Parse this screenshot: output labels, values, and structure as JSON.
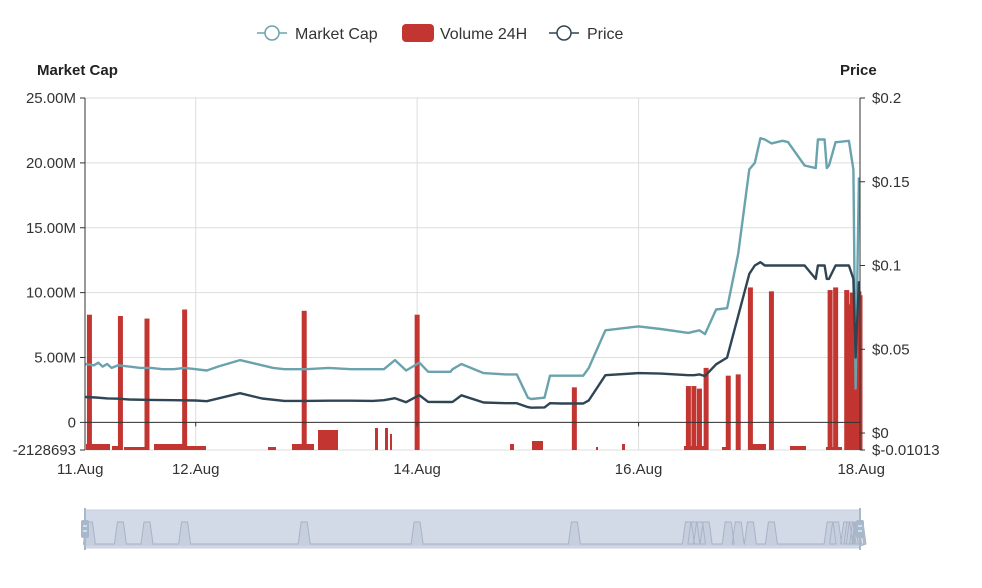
{
  "chart_data": {
    "type": "line",
    "legend": {
      "placement": "top-center",
      "items": [
        {
          "name": "Market Cap",
          "symbol": "line-circle",
          "color": "#6aa3ad"
        },
        {
          "name": "Volume 24H",
          "symbol": "rect",
          "color": "#c23531"
        },
        {
          "name": "Price",
          "symbol": "line-circle",
          "color": "#2f4554"
        }
      ]
    },
    "left_axis": {
      "title": "Market Cap",
      "min": -2128693,
      "max": 25000000,
      "ticks": [
        -2128693,
        0,
        5000000,
        10000000,
        15000000,
        20000000,
        25000000
      ],
      "tick_labels": [
        "-2128693",
        "0",
        "5.00M",
        "10.00M",
        "15.00M",
        "20.00M",
        "25.00M"
      ]
    },
    "right_axis": {
      "title": "Price",
      "min": -0.01013,
      "max": 0.2,
      "ticks": [
        -0.01013,
        0,
        0.05,
        0.1,
        0.15,
        0.2
      ],
      "tick_labels": [
        "$-0.01013",
        "$0",
        "$0.05",
        "$0.1",
        "$0.15",
        "$0.2"
      ]
    },
    "x_axis": {
      "unit": "day of August",
      "min": 11,
      "max": 18,
      "ticks": [
        11,
        12,
        14,
        16,
        18
      ],
      "tick_labels": [
        "11.Aug",
        "12.Aug",
        "14.Aug",
        "16.Aug",
        "18.Aug"
      ]
    },
    "grid": true,
    "series": [
      {
        "name": "Market Cap",
        "type": "line",
        "axis": "left",
        "color": "#6aa3ad",
        "x": [
          11.0,
          11.08,
          11.12,
          11.16,
          11.2,
          11.24,
          11.3,
          11.4,
          11.5,
          11.6,
          11.7,
          11.8,
          11.9,
          12.0,
          12.1,
          12.2,
          12.4,
          12.6,
          12.7,
          12.8,
          13.0,
          13.2,
          13.4,
          13.6,
          13.7,
          13.8,
          13.9,
          14.0,
          14.02,
          14.1,
          14.3,
          14.32,
          14.4,
          14.6,
          14.8,
          14.9,
          15.0,
          15.03,
          15.15,
          15.2,
          15.3,
          15.5,
          15.55,
          15.7,
          16.0,
          16.2,
          16.45,
          16.5,
          16.55,
          16.6,
          16.7,
          16.8,
          16.9,
          17.0,
          17.05,
          17.1,
          17.14,
          17.2,
          17.3,
          17.35,
          17.5,
          17.6,
          17.62,
          17.68,
          17.7,
          17.72,
          17.78,
          17.8,
          17.9,
          17.94,
          17.96,
          17.99,
          18.0
        ],
        "values": [
          4500000,
          4400000,
          4600000,
          4300000,
          4500000,
          4200000,
          4400000,
          4300000,
          4200000,
          4200000,
          4100000,
          4100000,
          4200000,
          4100000,
          4000000,
          4300000,
          4800000,
          4400000,
          4200000,
          4100000,
          4100000,
          4200000,
          4100000,
          4100000,
          4100000,
          4800000,
          4000000,
          4500000,
          4600000,
          3900000,
          3900000,
          4100000,
          4500000,
          3800000,
          3700000,
          3700000,
          1900000,
          1800000,
          1900000,
          3600000,
          3600000,
          3600000,
          4200000,
          7100000,
          7400000,
          7200000,
          6900000,
          7000000,
          7100000,
          6800000,
          8700000,
          8800000,
          13000000,
          19500000,
          20000000,
          21900000,
          21800000,
          21500000,
          21700000,
          21600000,
          19800000,
          19600000,
          21800000,
          21800000,
          19600000,
          19800000,
          21600000,
          21600000,
          21700000,
          19500000,
          2600000,
          18800000,
          18800000
        ]
      },
      {
        "name": "Price",
        "type": "line",
        "axis": "right",
        "color": "#2f4554",
        "x": [
          11.0,
          11.1,
          11.2,
          11.3,
          11.4,
          11.6,
          11.8,
          12.0,
          12.1,
          12.4,
          12.6,
          12.8,
          13.0,
          13.2,
          13.4,
          13.6,
          13.7,
          13.8,
          13.9,
          14.0,
          14.02,
          14.1,
          14.3,
          14.32,
          14.4,
          14.6,
          14.8,
          14.9,
          15.0,
          15.03,
          15.15,
          15.2,
          15.3,
          15.5,
          15.55,
          15.7,
          16.0,
          16.2,
          16.45,
          16.5,
          16.55,
          16.6,
          16.7,
          16.8,
          16.9,
          17.0,
          17.05,
          17.1,
          17.14,
          17.3,
          17.5,
          17.6,
          17.62,
          17.68,
          17.7,
          17.72,
          17.78,
          17.8,
          17.9,
          17.94,
          17.96,
          17.99,
          18.0
        ],
        "values": [
          0.0215,
          0.0212,
          0.0207,
          0.0205,
          0.02,
          0.0198,
          0.0196,
          0.0194,
          0.019,
          0.0238,
          0.0206,
          0.0192,
          0.0192,
          0.0193,
          0.0193,
          0.0192,
          0.0196,
          0.0208,
          0.0184,
          0.0219,
          0.0226,
          0.0186,
          0.0185,
          0.0186,
          0.0225,
          0.0182,
          0.0178,
          0.0178,
          0.0155,
          0.0151,
          0.0153,
          0.0178,
          0.0176,
          0.0176,
          0.0195,
          0.0345,
          0.0358,
          0.0355,
          0.0345,
          0.0345,
          0.035,
          0.034,
          0.041,
          0.045,
          0.07,
          0.095,
          0.1,
          0.102,
          0.1,
          0.1,
          0.1,
          0.092,
          0.1,
          0.1,
          0.092,
          0.092,
          0.1,
          0.1,
          0.1,
          0.092,
          0.045,
          0.09,
          0.09
        ]
      },
      {
        "name": "Volume 24H",
        "type": "bar",
        "axis": "left",
        "color": "#c23531",
        "x": [
          11.04,
          11.32,
          11.56,
          11.9,
          12.98,
          14.0,
          15.42,
          16.45,
          16.5,
          16.55,
          16.61,
          16.81,
          16.9,
          17.01,
          17.2,
          17.73,
          17.78,
          17.88,
          17.91,
          17.93,
          17.96,
          17.98,
          17.99,
          18.0
        ],
        "values": [
          8300000,
          8200000,
          8000000,
          8700000,
          8600000,
          8300000,
          2700000,
          2800000,
          2800000,
          2600000,
          4200000,
          3600000,
          3700000,
          10400000,
          10100000,
          10200000,
          10400000,
          10200000,
          9100000,
          10000000,
          9600000,
          10100000,
          10100000,
          9800000
        ],
        "baseline": -2128693
      }
    ],
    "data_zoom": {
      "start": 0,
      "end": 100
    }
  }
}
